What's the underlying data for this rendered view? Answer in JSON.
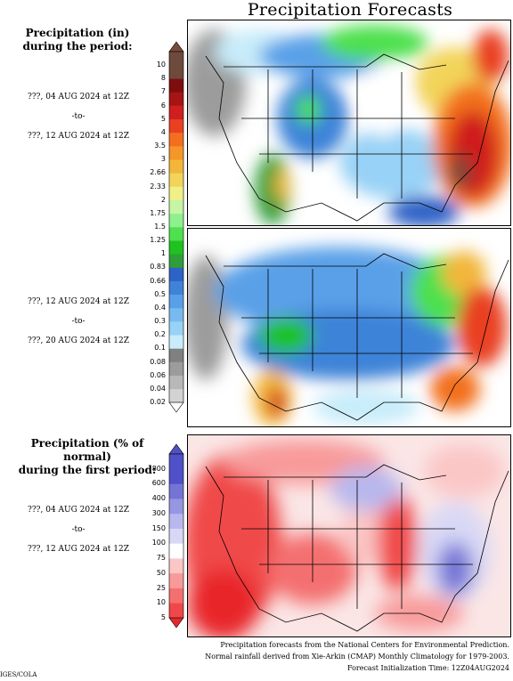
{
  "title": "Precipitation Forecasts",
  "section1": {
    "heading": [
      "Precipitation (in)",
      "during the period:"
    ],
    "period1": {
      "start": "???, 04 AUG 2024 at 12Z",
      "to": "-to-",
      "end": "???, 12 AUG 2024 at 12Z"
    },
    "period2": {
      "start": "???, 12 AUG 2024 at 12Z",
      "to": "-to-",
      "end": "???, 20 AUG 2024 at 12Z"
    }
  },
  "section2": {
    "heading": [
      "Precipitation (% of normal)",
      "during the first period:"
    ],
    "period": {
      "start": "???, 04 AUG 2024 at 12Z",
      "to": "-to-",
      "end": "???, 12 AUG 2024 at 12Z"
    }
  },
  "footer": [
    "Precipitation forecasts from the National Centers for Environmental Prediction.",
    "Normal rainfall derived from Xie-Arkin (CMAP) Monthly Climatology for 1979-2003.",
    "Forecast Initialization Time: 12Z04AUG2024"
  ],
  "credit": "IGES/COLA",
  "chart_data": [
    {
      "type": "heatmap",
      "title": "Precipitation (in) during the period: ???, 04 AUG 2024 at 12Z -to- ???, 12 AUG 2024 at 12Z",
      "units": "in",
      "colorbar_levels": [
        "0.02",
        "0.04",
        "0.06",
        "0.08",
        "0.1",
        "0.2",
        "0.3",
        "0.4",
        "0.5",
        "0.66",
        "0.83",
        "1",
        "1.25",
        "1.5",
        "1.75",
        "2",
        "2.33",
        "2.66",
        "3",
        "3.5",
        "4",
        "5",
        "6",
        "7",
        "8",
        "10"
      ],
      "colorbar_colors": [
        "#ffffff",
        "#d3d3d3",
        "#b8b8b8",
        "#9c9c9c",
        "#808080",
        "#c8ecfa",
        "#98d2f6",
        "#78baf0",
        "#5aa0e8",
        "#3e83d8",
        "#2d62c6",
        "#2f9e3a",
        "#1fc21f",
        "#4ee04e",
        "#8ef08e",
        "#c5f5a5",
        "#f0f088",
        "#f2d45a",
        "#f2b63a",
        "#f5962a",
        "#f36f1f",
        "#e94022",
        "#cf1f1f",
        "#a81414",
        "#7e0e0e",
        "#6e4a3c"
      ],
      "highlights": [
        "heaviest totals over the Southeast and East Coast (3-7 in)",
        "moderate totals over the Rockies and Southwest",
        "dry over the West Coast and Great Basin"
      ]
    },
    {
      "type": "heatmap",
      "title": "Precipitation (in) during the period: ???, 12 AUG 2024 at 12Z -to- ???, 20 AUG 2024 at 12Z",
      "units": "in",
      "colorbar_levels": [
        "0.02",
        "0.04",
        "0.06",
        "0.08",
        "0.1",
        "0.2",
        "0.3",
        "0.4",
        "0.5",
        "0.66",
        "0.83",
        "1",
        "1.25",
        "1.5",
        "1.75",
        "2",
        "2.33",
        "2.66",
        "3",
        "3.5",
        "4",
        "5",
        "6",
        "7",
        "8",
        "10"
      ],
      "highlights": [
        "widespread 0.3-1 in over the central and eastern US",
        "heavier totals along the Southeast coast and the Southwest monsoon region",
        "dry along the West Coast"
      ]
    },
    {
      "type": "heatmap",
      "title": "Precipitation (% of normal) during the first period: ???, 04 AUG 2024 at 12Z -to- ???, 12 AUG 2024 at 12Z",
      "units": "% of normal",
      "colorbar_levels": [
        "5",
        "10",
        "25",
        "50",
        "75",
        "100",
        "150",
        "300",
        "400",
        "600",
        "800"
      ],
      "colorbar_colors": [
        "#e8262a",
        "#f04848",
        "#f47070",
        "#f89a9a",
        "#fbc6c6",
        "#ffffff",
        "#d8d8f6",
        "#b8b8ee",
        "#9696e2",
        "#7474d6",
        "#5050c8"
      ],
      "highlights": [
        "below normal across most of the West and the Mississippi valley",
        "above normal over the Southeast and parts of the central Plains"
      ]
    }
  ]
}
